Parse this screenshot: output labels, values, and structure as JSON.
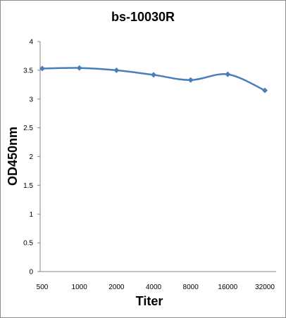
{
  "chart_data": {
    "type": "line",
    "title": "bs-10030R",
    "xlabel": "Titer",
    "ylabel": "OD450nm",
    "categories": [
      "500",
      "1000",
      "2000",
      "4000",
      "8000",
      "16000",
      "32000"
    ],
    "series": [
      {
        "values": [
          3.53,
          3.54,
          3.5,
          3.42,
          3.33,
          3.43,
          3.15
        ]
      }
    ],
    "ylim": [
      0,
      4
    ],
    "yticks": [
      "0",
      "0.5",
      "1",
      "1.5",
      "2",
      "2.5",
      "3",
      "3.5",
      "4"
    ],
    "grid": false,
    "line_color": "#4a7ebb"
  }
}
